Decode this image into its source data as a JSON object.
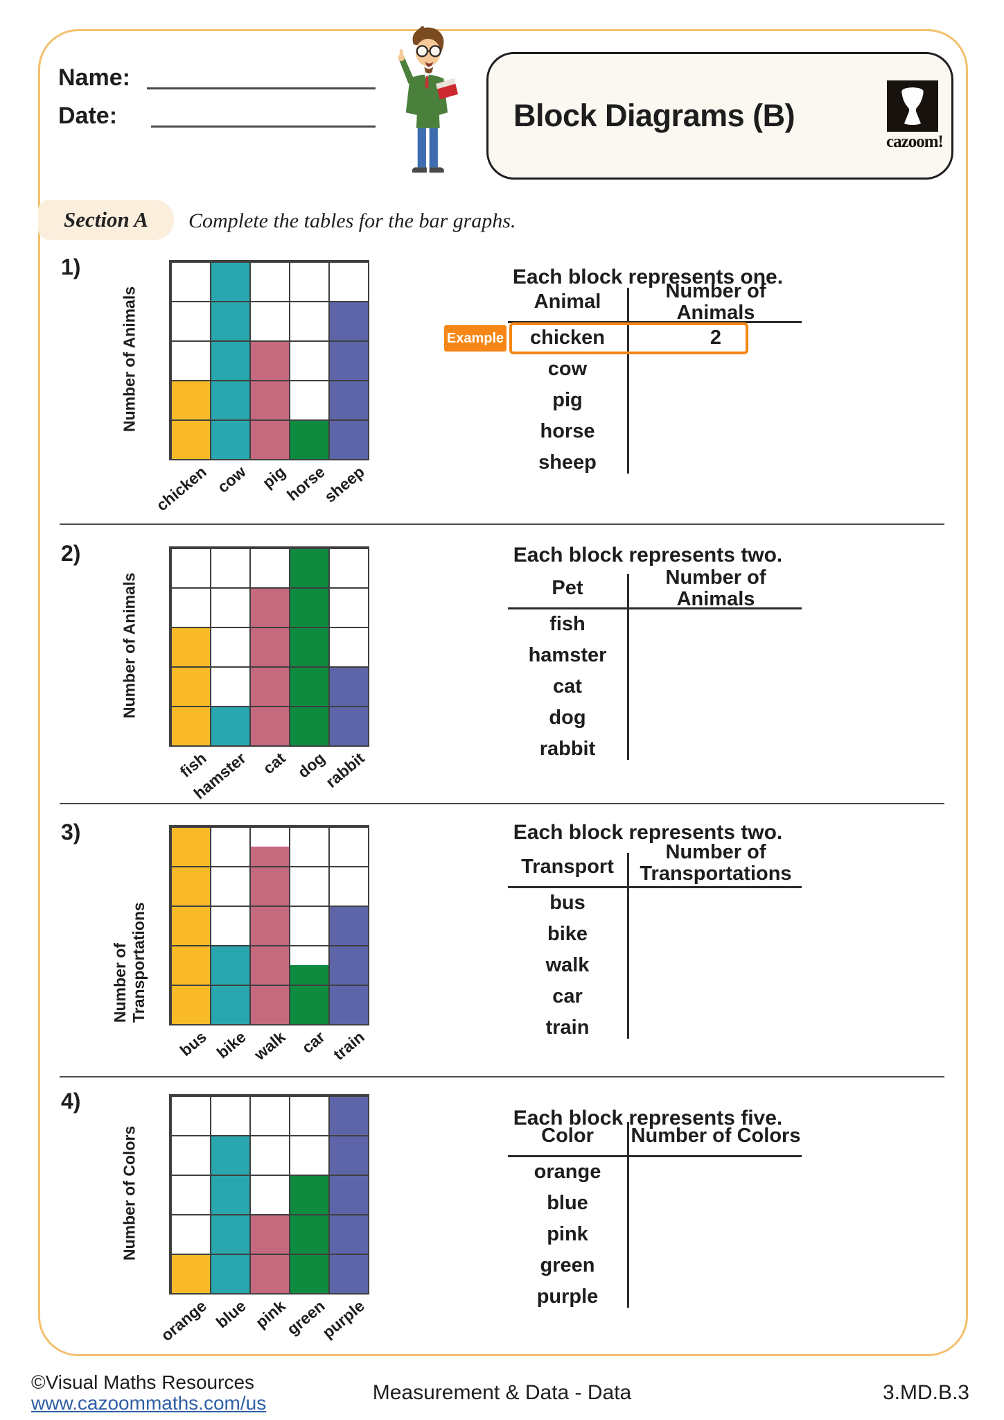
{
  "header": {
    "name_label": "Name:",
    "date_label": "Date:",
    "title": "Block Diagrams (B)",
    "brand": "cazoom!"
  },
  "section_a": {
    "badge": "Section A",
    "instruction": "Complete the tables for the bar graphs."
  },
  "palette": {
    "bar_colors": [
      "#F8BB27",
      "#2AA7AE",
      "#C4697E",
      "#0E8B3E",
      "#5D65A8"
    ],
    "accent_orange": "#F68716",
    "frame_orange": "#F3C06E",
    "link_blue": "#2F5FA5"
  },
  "problems": [
    {
      "number": "1)",
      "note": "Each block represents one.",
      "ylabel": "Number of Animals",
      "chart": {
        "categories": [
          "chicken",
          "cow",
          "pig",
          "horse",
          "sheep"
        ],
        "blocks": [
          2,
          5,
          3,
          1,
          4
        ]
      },
      "table": {
        "col1": "Animal",
        "col2": "Number of Animals",
        "rows": [
          "chicken",
          "cow",
          "pig",
          "horse",
          "sheep"
        ],
        "example_label": "Example",
        "example_row": 0,
        "example_value": "2"
      }
    },
    {
      "number": "2)",
      "note": "Each block represents two.",
      "ylabel": "Number of Animals",
      "chart": {
        "categories": [
          "fish",
          "hamster",
          "cat",
          "dog",
          "rabbit"
        ],
        "blocks": [
          3,
          1,
          4,
          5,
          2
        ]
      },
      "table": {
        "col1": "Pet",
        "col2": "Number of Animals",
        "rows": [
          "fish",
          "hamster",
          "cat",
          "dog",
          "rabbit"
        ]
      }
    },
    {
      "number": "3)",
      "note": "Each block represents two.",
      "ylabel": "Number of Transportations",
      "chart": {
        "categories": [
          "bus",
          "bike",
          "walk",
          "car",
          "train"
        ],
        "blocks": [
          5,
          2,
          4.5,
          1.5,
          3
        ]
      },
      "table": {
        "col1": "Transport",
        "col2": "Number of\nTransportations",
        "rows": [
          "bus",
          "bike",
          "walk",
          "car",
          "train"
        ]
      }
    },
    {
      "number": "4)",
      "note": "Each block represents five.",
      "ylabel": "Number of Colors",
      "chart": {
        "categories": [
          "orange",
          "blue",
          "pink",
          "green",
          "purple"
        ],
        "blocks": [
          1,
          4,
          2,
          3,
          5
        ]
      },
      "table": {
        "col1": "Color",
        "col2": "Number of Colors",
        "rows": [
          "orange",
          "blue",
          "pink",
          "green",
          "purple"
        ]
      }
    }
  ],
  "chart_data": [
    {
      "type": "bar",
      "title": "Each block represents one.",
      "ylabel": "Number of Animals",
      "categories": [
        "chicken",
        "cow",
        "pig",
        "horse",
        "sheep"
      ],
      "values_in_blocks": [
        2,
        5,
        3,
        1,
        4
      ],
      "block_unit": 1,
      "values": [
        2,
        5,
        3,
        1,
        4
      ],
      "ylim_blocks": [
        0,
        5
      ],
      "grid": true,
      "bar_colors": [
        "#F8BB27",
        "#2AA7AE",
        "#C4697E",
        "#0E8B3E",
        "#5D65A8"
      ]
    },
    {
      "type": "bar",
      "title": "Each block represents two.",
      "ylabel": "Number of Animals",
      "categories": [
        "fish",
        "hamster",
        "cat",
        "dog",
        "rabbit"
      ],
      "values_in_blocks": [
        3,
        1,
        4,
        5,
        2
      ],
      "block_unit": 2,
      "values": [
        6,
        2,
        8,
        10,
        4
      ],
      "ylim_blocks": [
        0,
        5
      ],
      "grid": true,
      "bar_colors": [
        "#F8BB27",
        "#2AA7AE",
        "#C4697E",
        "#0E8B3E",
        "#5D65A8"
      ]
    },
    {
      "type": "bar",
      "title": "Each block represents two.",
      "ylabel": "Number of Transportations",
      "categories": [
        "bus",
        "bike",
        "walk",
        "car",
        "train"
      ],
      "values_in_blocks": [
        5,
        2,
        4.5,
        1.5,
        3
      ],
      "block_unit": 2,
      "values": [
        10,
        4,
        9,
        3,
        6
      ],
      "ylim_blocks": [
        0,
        5
      ],
      "grid": true,
      "bar_colors": [
        "#F8BB27",
        "#2AA7AE",
        "#C4697E",
        "#0E8B3E",
        "#5D65A8"
      ]
    },
    {
      "type": "bar",
      "title": "Each block represents five.",
      "ylabel": "Number of Colors",
      "categories": [
        "orange",
        "blue",
        "pink",
        "green",
        "purple"
      ],
      "values_in_blocks": [
        1,
        4,
        2,
        3,
        5
      ],
      "block_unit": 5,
      "values": [
        5,
        20,
        10,
        15,
        25
      ],
      "ylim_blocks": [
        0,
        5
      ],
      "grid": true,
      "bar_colors": [
        "#F8BB27",
        "#2AA7AE",
        "#C4697E",
        "#0E8B3E",
        "#5D65A8"
      ]
    }
  ],
  "footer": {
    "copyright": "©Visual Maths Resources",
    "url": "www.cazoommaths.com/us",
    "center": "Measurement & Data - Data",
    "standard": "3.MD.B.3"
  }
}
